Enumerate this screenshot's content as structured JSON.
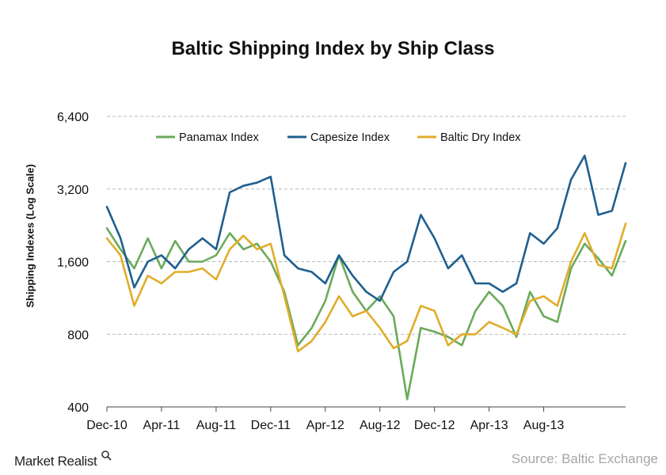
{
  "chart_data": {
    "type": "line",
    "title": "Baltic Shipping Index by Ship Class",
    "ylabel": "Shipping Indexes (Log Scale)",
    "xlabel": "",
    "y_scale": "log",
    "ylim": [
      400,
      6400
    ],
    "y_ticks": [
      400,
      800,
      1600,
      3200,
      6400
    ],
    "y_tick_labels": [
      "400",
      "800",
      "1,600",
      "3,200",
      "6,400"
    ],
    "x_range": [
      "2010-12",
      "2014-02"
    ],
    "x_ticks": [
      "Dec-10",
      "Apr-11",
      "Aug-11",
      "Dec-11",
      "Apr-12",
      "Aug-12",
      "Dec-12",
      "Apr-13",
      "Aug-13"
    ],
    "grid": "horizontal dashed",
    "legend_position": "top",
    "series": [
      {
        "name": "Panamax Index",
        "color": "#6aaa5a",
        "points": [
          [
            "2010-12",
            2200
          ],
          [
            "2011-01",
            1800
          ],
          [
            "2011-02",
            1500
          ],
          [
            "2011-03",
            2000
          ],
          [
            "2011-04",
            1500
          ],
          [
            "2011-05",
            1950
          ],
          [
            "2011-06",
            1600
          ],
          [
            "2011-07",
            1600
          ],
          [
            "2011-08",
            1700
          ],
          [
            "2011-09",
            2100
          ],
          [
            "2011-10",
            1800
          ],
          [
            "2011-11",
            1900
          ],
          [
            "2011-12",
            1600
          ],
          [
            "2012-01",
            1200
          ],
          [
            "2012-02",
            720
          ],
          [
            "2012-03",
            850
          ],
          [
            "2012-04",
            1100
          ],
          [
            "2012-05",
            1700
          ],
          [
            "2012-06",
            1200
          ],
          [
            "2012-07",
            1000
          ],
          [
            "2012-08",
            1150
          ],
          [
            "2012-09",
            950
          ],
          [
            "2012-10",
            430
          ],
          [
            "2012-11",
            850
          ],
          [
            "2012-12",
            820
          ],
          [
            "2013-01",
            780
          ],
          [
            "2013-02",
            720
          ],
          [
            "2013-03",
            1000
          ],
          [
            "2013-04",
            1200
          ],
          [
            "2013-05",
            1050
          ],
          [
            "2013-06",
            780
          ],
          [
            "2013-07",
            1200
          ],
          [
            "2013-08",
            950
          ],
          [
            "2013-09",
            900
          ],
          [
            "2013-10",
            1500
          ],
          [
            "2013-11",
            1900
          ],
          [
            "2013-12",
            1650
          ],
          [
            "2014-01",
            1400
          ],
          [
            "2014-02",
            1950
          ]
        ]
      },
      {
        "name": "Capesize Index",
        "color": "#1f5f8f",
        "points": [
          [
            "2010-12",
            2700
          ],
          [
            "2011-01",
            2000
          ],
          [
            "2011-02",
            1250
          ],
          [
            "2011-03",
            1600
          ],
          [
            "2011-04",
            1700
          ],
          [
            "2011-05",
            1500
          ],
          [
            "2011-06",
            1800
          ],
          [
            "2011-07",
            2000
          ],
          [
            "2011-08",
            1800
          ],
          [
            "2011-09",
            3100
          ],
          [
            "2011-10",
            3300
          ],
          [
            "2011-11",
            3400
          ],
          [
            "2011-12",
            3600
          ],
          [
            "2012-01",
            1700
          ],
          [
            "2012-02",
            1500
          ],
          [
            "2012-03",
            1450
          ],
          [
            "2012-04",
            1300
          ],
          [
            "2012-05",
            1700
          ],
          [
            "2012-06",
            1400
          ],
          [
            "2012-07",
            1200
          ],
          [
            "2012-08",
            1100
          ],
          [
            "2012-09",
            1450
          ],
          [
            "2012-10",
            1600
          ],
          [
            "2012-11",
            2500
          ],
          [
            "2012-12",
            2000
          ],
          [
            "2013-01",
            1500
          ],
          [
            "2013-02",
            1700
          ],
          [
            "2013-03",
            1300
          ],
          [
            "2013-04",
            1300
          ],
          [
            "2013-05",
            1200
          ],
          [
            "2013-06",
            1300
          ],
          [
            "2013-07",
            2100
          ],
          [
            "2013-08",
            1900
          ],
          [
            "2013-09",
            2200
          ],
          [
            "2013-10",
            3500
          ],
          [
            "2013-11",
            4400
          ],
          [
            "2013-12",
            2500
          ],
          [
            "2014-01",
            2600
          ],
          [
            "2014-02",
            4100
          ]
        ]
      },
      {
        "name": "Baltic Dry Index",
        "color": "#e0ad2a",
        "points": [
          [
            "2010-12",
            2000
          ],
          [
            "2011-01",
            1700
          ],
          [
            "2011-02",
            1050
          ],
          [
            "2011-03",
            1400
          ],
          [
            "2011-04",
            1300
          ],
          [
            "2011-05",
            1450
          ],
          [
            "2011-06",
            1450
          ],
          [
            "2011-07",
            1500
          ],
          [
            "2011-08",
            1350
          ],
          [
            "2011-09",
            1800
          ],
          [
            "2011-10",
            2050
          ],
          [
            "2011-11",
            1800
          ],
          [
            "2011-12",
            1900
          ],
          [
            "2012-01",
            1150
          ],
          [
            "2012-02",
            680
          ],
          [
            "2012-03",
            750
          ],
          [
            "2012-04",
            900
          ],
          [
            "2012-05",
            1150
          ],
          [
            "2012-06",
            950
          ],
          [
            "2012-07",
            1000
          ],
          [
            "2012-08",
            850
          ],
          [
            "2012-09",
            700
          ],
          [
            "2012-10",
            750
          ],
          [
            "2012-11",
            1050
          ],
          [
            "2012-12",
            1000
          ],
          [
            "2013-01",
            720
          ],
          [
            "2013-02",
            800
          ],
          [
            "2013-03",
            800
          ],
          [
            "2013-04",
            900
          ],
          [
            "2013-05",
            850
          ],
          [
            "2013-06",
            800
          ],
          [
            "2013-07",
            1100
          ],
          [
            "2013-08",
            1150
          ],
          [
            "2013-09",
            1050
          ],
          [
            "2013-10",
            1600
          ],
          [
            "2013-11",
            2100
          ],
          [
            "2013-12",
            1550
          ],
          [
            "2014-01",
            1500
          ],
          [
            "2014-02",
            2300
          ]
        ]
      }
    ]
  },
  "footer": {
    "brand": "Market Realist",
    "source": "Source: Baltic Exchange"
  }
}
